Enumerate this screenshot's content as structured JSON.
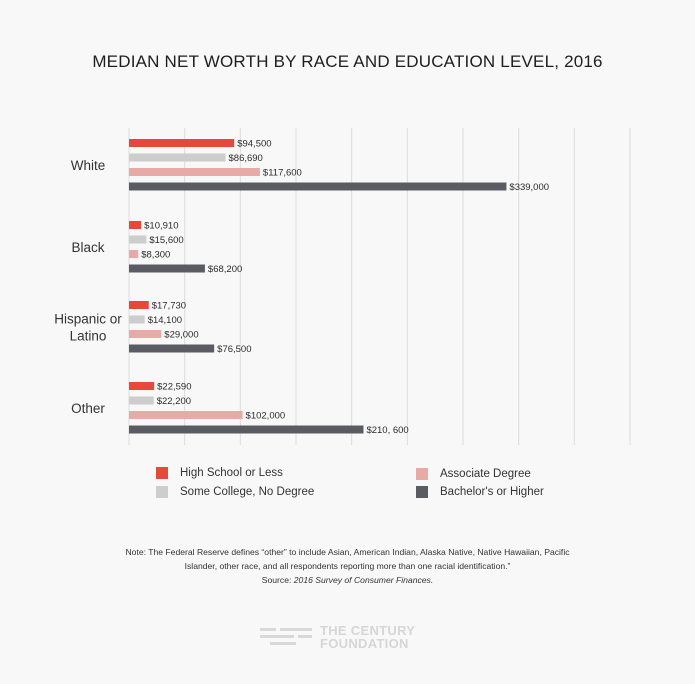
{
  "title": "MEDIAN NET WORTH BY RACE AND EDUCATION LEVEL, 2016",
  "chart_data": {
    "type": "bar",
    "orientation": "horizontal",
    "title": "MEDIAN NET WORTH BY RACE AND EDUCATION LEVEL, 2016",
    "categories": [
      [
        "White"
      ],
      [
        "Black"
      ],
      [
        "Hispanic or",
        "Latino"
      ],
      [
        "Other"
      ]
    ],
    "xlim": [
      0,
      450000
    ],
    "grid": true,
    "legend_position": "bottom",
    "series": [
      {
        "name": "High School or Less",
        "color": "#e8473c",
        "values": [
          94500,
          10910,
          17730,
          22590
        ],
        "labels": [
          "$94,500",
          "$10,910",
          "$17,730",
          "$22,590"
        ]
      },
      {
        "name": "Some College, No Degree",
        "color": "#cdcdcd",
        "values": [
          86690,
          15600,
          14100,
          22200
        ],
        "labels": [
          "$86,690",
          "$15,600",
          "$14,100",
          "$22,200"
        ]
      },
      {
        "name": "Associate Degree",
        "color": "#e8aaa6",
        "values": [
          117600,
          8300,
          29000,
          102000
        ],
        "labels": [
          "$117,600",
          "$8,300",
          "$29,000",
          "$102,000"
        ]
      },
      {
        "name": "Bachelor's or Higher",
        "color": "#5b5c63",
        "values": [
          339000,
          68200,
          76500,
          210600
        ],
        "labels": [
          "$339,000",
          "$68,200",
          "$76,500",
          "$210, 600"
        ]
      }
    ]
  },
  "note": {
    "line1": "Note: The Federal Reserve defines “other” to include Asian, American Indian, Alaska Native, Native Hawaiian, Pacific",
    "line2": "Islander, other race, and all respondents reporting more than one racial identification.”",
    "source_prefix": "Source: ",
    "source_title": "2016 Survey of Consumer Finances."
  },
  "logo": {
    "line1": "THE CENTURY",
    "line2": "FOUNDATION"
  }
}
